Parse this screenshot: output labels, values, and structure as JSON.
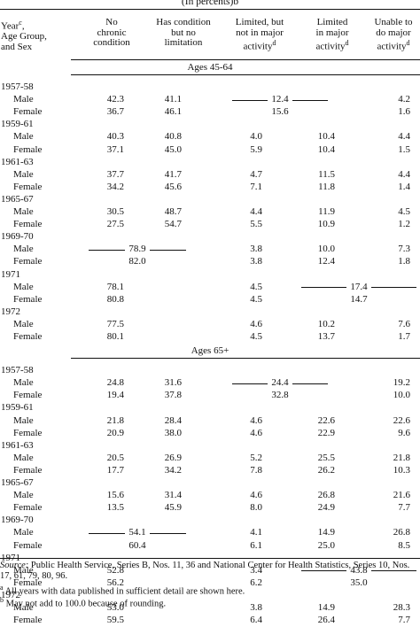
{
  "title": "(In percents)b",
  "headers": {
    "col0": [
      "Year",
      "Age Group,",
      "and Sex"
    ],
    "col0_sup": "c",
    "col1": [
      "No",
      "chronic",
      "condition"
    ],
    "col2": [
      "Has condition",
      "but no",
      "limitation"
    ],
    "col3": [
      "Limited, but",
      "not in major",
      "activity"
    ],
    "col3_sup": "d",
    "col4": [
      "Limited",
      "in major",
      "activity"
    ],
    "col4_sup": "d",
    "col5": [
      "Unable to",
      "do major",
      "activity"
    ],
    "col5_sup": "d"
  },
  "sections": [
    {
      "label": "Ages 45-64",
      "years": [
        {
          "year": "1957-58",
          "rows": [
            {
              "sex": "Male",
              "c1": "42.3",
              "c2": "41.1",
              "m34": "12.4",
              "c5": "4.2"
            },
            {
              "sex": "Female",
              "c1": "36.7",
              "c2": "46.1",
              "m34s": "15.6",
              "c5": "1.6"
            }
          ]
        },
        {
          "year": "1959-61",
          "rows": [
            {
              "sex": "Male",
              "c1": "40.3",
              "c2": "40.8",
              "c3": "4.0",
              "c4": "10.4",
              "c5": "4.4"
            },
            {
              "sex": "Female",
              "c1": "37.1",
              "c2": "45.0",
              "c3": "5.9",
              "c4": "10.4",
              "c5": "1.5"
            }
          ]
        },
        {
          "year": "1961-63",
          "rows": [
            {
              "sex": "Male",
              "c1": "37.7",
              "c2": "41.7",
              "c3": "4.7",
              "c4": "11.5",
              "c5": "4.4"
            },
            {
              "sex": "Female",
              "c1": "34.2",
              "c2": "45.6",
              "c3": "7.1",
              "c4": "11.8",
              "c5": "1.4"
            }
          ]
        },
        {
          "year": "1965-67",
          "rows": [
            {
              "sex": "Male",
              "c1": "30.5",
              "c2": "48.7",
              "c3": "4.4",
              "c4": "11.9",
              "c5": "4.5"
            },
            {
              "sex": "Female",
              "c1": "27.5",
              "c2": "54.7",
              "c3": "5.5",
              "c4": "10.9",
              "c5": "1.2"
            }
          ]
        },
        {
          "year": "1969-70",
          "rows": [
            {
              "sex": "Male",
              "m12": "78.9",
              "c3": "3.8",
              "c4": "10.0",
              "c5": "7.3"
            },
            {
              "sex": "Female",
              "m12s": "82.0",
              "c3": "3.8",
              "c4": "12.4",
              "c5": "1.8"
            }
          ]
        },
        {
          "year": "1971",
          "rows": [
            {
              "sex": "Male",
              "c1": "78.1",
              "c3": "4.5",
              "m45": "17.4"
            },
            {
              "sex": "Female",
              "c1": "80.8",
              "c3": "4.5",
              "m45s": "14.7"
            }
          ]
        },
        {
          "year": "1972",
          "rows": [
            {
              "sex": "Male",
              "c1": "77.5",
              "c3": "4.6",
              "c4": "10.2",
              "c5": "7.6"
            },
            {
              "sex": "Female",
              "c1": "80.1",
              "c3": "4.5",
              "c4": "13.7",
              "c5": "1.7"
            }
          ]
        }
      ]
    },
    {
      "label": "Ages 65+",
      "years": [
        {
          "year": "1957-58",
          "rows": [
            {
              "sex": "Male",
              "c1": "24.8",
              "c2": "31.6",
              "m34": "24.4",
              "c5": "19.2"
            },
            {
              "sex": "Female",
              "c1": "19.4",
              "c2": "37.8",
              "m34s": "32.8",
              "c5": "10.0"
            }
          ]
        },
        {
          "year": "1959-61",
          "rows": [
            {
              "sex": "Male",
              "c1": "21.8",
              "c2": "28.4",
              "c3": "4.6",
              "c4": "22.6",
              "c5": "22.6"
            },
            {
              "sex": "Female",
              "c1": "20.9",
              "c2": "38.0",
              "c3": "4.6",
              "c4": "22.9",
              "c5": "9.6"
            }
          ]
        },
        {
          "year": "1961-63",
          "rows": [
            {
              "sex": "Male",
              "c1": "20.5",
              "c2": "26.9",
              "c3": "5.2",
              "c4": "25.5",
              "c5": "21.8"
            },
            {
              "sex": "Female",
              "c1": "17.7",
              "c2": "34.2",
              "c3": "7.8",
              "c4": "26.2",
              "c5": "10.3"
            }
          ]
        },
        {
          "year": "1965-67",
          "rows": [
            {
              "sex": "Male",
              "c1": "15.6",
              "c2": "31.4",
              "c3": "4.6",
              "c4": "26.8",
              "c5": "21.6"
            },
            {
              "sex": "Female",
              "c1": "13.5",
              "c2": "45.9",
              "c3": "8.0",
              "c4": "24.9",
              "c5": "7.7"
            }
          ]
        },
        {
          "year": "1969-70",
          "rows": [
            {
              "sex": "Male",
              "m12": "54.1",
              "c3": "4.1",
              "c4": "14.9",
              "c5": "26.8"
            },
            {
              "sex": "Female",
              "m12s": "60.4",
              "c3": "6.1",
              "c4": "25.0",
              "c5": "8.5"
            }
          ]
        },
        {
          "year": "1971",
          "rows": [
            {
              "sex": "Male",
              "c1": "52.8",
              "c3": "3.4",
              "m45": "43.8"
            },
            {
              "sex": "Female",
              "c1": "56.2",
              "c3": "6.2",
              "m45s": "35.0"
            }
          ]
        },
        {
          "year": "1972",
          "rows": [
            {
              "sex": "Male",
              "c1": "53.0",
              "c3": "3.8",
              "c4": "14.9",
              "c5": "28.3"
            },
            {
              "sex": "Female",
              "c1": "59.5",
              "c3": "6.4",
              "c4": "26.4",
              "c5": "7.7"
            }
          ]
        }
      ]
    }
  ],
  "footnotes": {
    "source_label": "Source:",
    "source_text": " Public Health Service, Series B, Nos. 11, 36 and National Center for Health Statistics, Series 10, Nos. 17, 61, 79, 80, 96.",
    "a_mark": "a",
    "a_text": " All years with data published in sufficient detail are shown here.",
    "b_mark": "b",
    "b_text": " May not add to 100.0 because of rounding."
  }
}
